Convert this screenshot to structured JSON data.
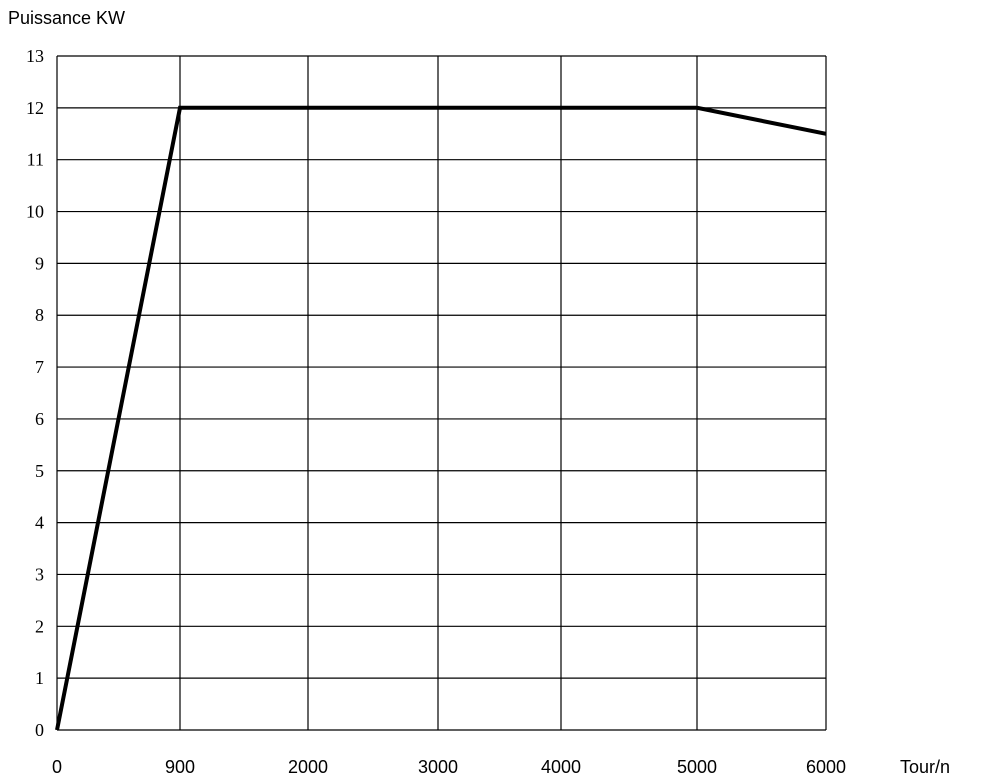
{
  "chart_data": {
    "type": "line",
    "title": "",
    "ylabel": "Puissance KW",
    "xlabel": "Tour/n",
    "ylim": [
      0,
      13
    ],
    "y_ticks": [
      "0",
      "1",
      "2",
      "3",
      "4",
      "5",
      "6",
      "7",
      "8",
      "9",
      "10",
      "11",
      "12",
      "13"
    ],
    "x_categories": [
      "0",
      "900",
      "2000",
      "3000",
      "4000",
      "5000",
      "6000"
    ],
    "grid": true,
    "legend": "none",
    "series": [
      {
        "color": "#000000",
        "points": [
          {
            "x": 0,
            "y": 0
          },
          {
            "x": 900,
            "y": 12
          },
          {
            "x": 5000,
            "y": 12
          },
          {
            "x": 6000,
            "y": 11.5
          }
        ]
      }
    ]
  }
}
